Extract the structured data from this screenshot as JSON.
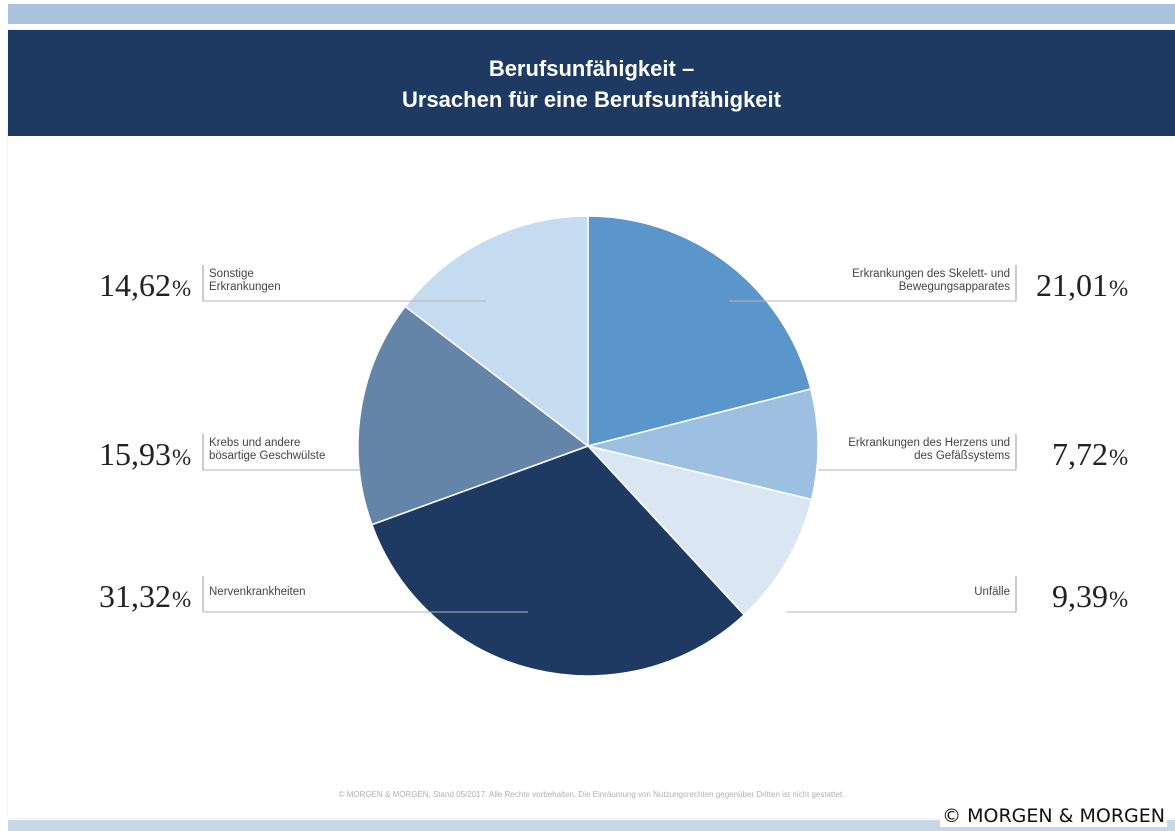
{
  "header": {
    "title_line1": "Berufsunfähigkeit –",
    "title_line2": "Ursachen für eine Berufsunfähigkeit"
  },
  "chart_data": {
    "type": "pie",
    "title": "Berufsunfähigkeit – Ursachen für eine Berufsunfähigkeit",
    "percent_sign": "%",
    "slices": [
      {
        "label_lines": [
          "Erkrankungen des Skelett- und",
          "Bewegungsapparates"
        ],
        "value": 21.01,
        "display": "21,01",
        "color": "#5a96c9",
        "side": "right"
      },
      {
        "label_lines": [
          "Erkrankungen des Herzens und",
          "des Gefäßsystems"
        ],
        "value": 7.72,
        "display": "7,72",
        "color": "#9dbfe0",
        "side": "right"
      },
      {
        "label_lines": [
          "Unfälle"
        ],
        "value": 9.39,
        "display": "9,39",
        "color": "#dae7f3",
        "side": "right"
      },
      {
        "label_lines": [
          "Nervenkrankheiten"
        ],
        "value": 31.32,
        "display": "31,32",
        "color": "#1e3a62",
        "side": "left"
      },
      {
        "label_lines": [
          "Krebs und andere",
          "bösartige Geschwülste"
        ],
        "value": 15.93,
        "display": "15,93",
        "color": "#6585a8",
        "side": "left"
      },
      {
        "label_lines": [
          "Sonstige",
          "Erkrankungen"
        ],
        "value": 14.62,
        "display": "14,62",
        "color": "#c5dcf0",
        "side": "left"
      }
    ]
  },
  "footer": {
    "note": "© MORGEN & MORGEN, Stand 05/2017. Alle Rechte vorbehalten. Die Einräumung von Nutzungsrechten gegenüber Dritten ist nicht gestattet.",
    "watermark": "© MORGEN & MORGEN"
  }
}
